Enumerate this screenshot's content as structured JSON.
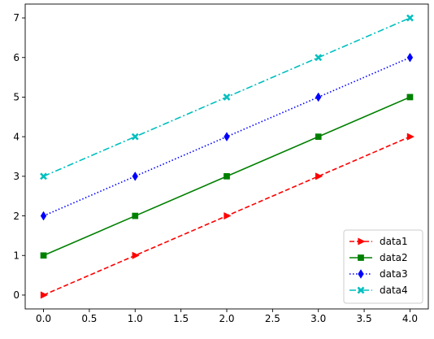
{
  "chart_data": {
    "type": "line",
    "title": "",
    "xlabel": "",
    "ylabel": "",
    "xlim": [
      -0.2,
      4.2
    ],
    "ylim": [
      -0.35,
      7.35
    ],
    "x_ticks": [
      0.0,
      0.5,
      1.0,
      1.5,
      2.0,
      2.5,
      3.0,
      3.5,
      4.0
    ],
    "x_tick_labels": [
      "0.0",
      "0.5",
      "1.0",
      "1.5",
      "2.0",
      "2.5",
      "3.0",
      "3.5",
      "4.0"
    ],
    "y_ticks": [
      0,
      1,
      2,
      3,
      4,
      5,
      6,
      7
    ],
    "y_tick_labels": [
      "0",
      "1",
      "2",
      "3",
      "4",
      "5",
      "6",
      "7"
    ],
    "grid": false,
    "legend_position": "lower-right",
    "x": [
      0,
      1,
      2,
      3,
      4
    ],
    "series": [
      {
        "name": "data1",
        "values": [
          0,
          1,
          2,
          3,
          4
        ],
        "color": "#ff0000",
        "linestyle": "dashed",
        "marker": "triangle-right"
      },
      {
        "name": "data2",
        "values": [
          1,
          2,
          3,
          4,
          5
        ],
        "color": "#008000",
        "linestyle": "solid",
        "marker": "square"
      },
      {
        "name": "data3",
        "values": [
          2,
          3,
          4,
          5,
          6
        ],
        "color": "#0000ff",
        "linestyle": "dotted",
        "marker": "diamond"
      },
      {
        "name": "data4",
        "values": [
          3,
          4,
          5,
          6,
          7
        ],
        "color": "#00bfbf",
        "linestyle": "dash-dot",
        "marker": "x-filled"
      }
    ]
  }
}
